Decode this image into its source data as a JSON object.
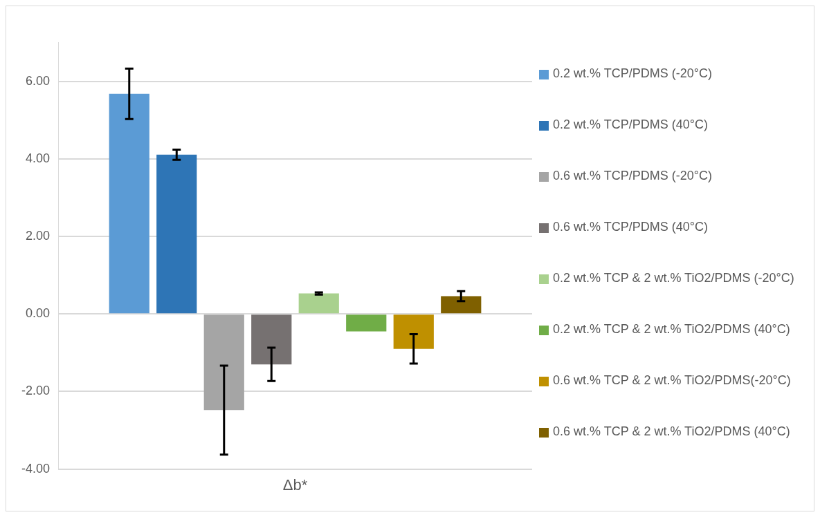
{
  "chart_data": {
    "type": "bar",
    "categories": [
      "Δb*"
    ],
    "series": [
      {
        "name": "0.2 wt.% TCP/PDMS (-20°C)",
        "color": "#5b9bd5",
        "values": [
          5.68
        ],
        "errors": [
          0.65
        ]
      },
      {
        "name": "0.2 wt.% TCP/PDMS (40°C)",
        "color": "#2e75b6",
        "values": [
          4.11
        ],
        "errors": [
          0.13
        ]
      },
      {
        "name": "0.6 wt.% TCP/PDMS (-20°C)",
        "color": "#a5a5a5",
        "values": [
          -2.48
        ],
        "errors": [
          1.15
        ]
      },
      {
        "name": "0.6 wt.% TCP/PDMS (40°C)",
        "color": "#767171",
        "values": [
          -1.3
        ],
        "errors": [
          0.43
        ]
      },
      {
        "name": "0.2 wt.% TCP & 2 wt.% TiO2/PDMS (-20°C)",
        "color": "#a9d18e",
        "values": [
          0.53
        ],
        "errors": [
          0.03
        ]
      },
      {
        "name": "0.2 wt.% TCP & 2 wt.% TiO2/PDMS (40°C)",
        "color": "#70ad47",
        "values": [
          -0.45
        ],
        "errors": [
          null
        ]
      },
      {
        "name": "0.6 wt.% TCP & 2 wt.% TiO2/PDMS(-20°C)",
        "color": "#bf9000",
        "values": [
          -0.9
        ],
        "errors": [
          0.38
        ]
      },
      {
        "name": "0.6 wt.% TCP & 2 wt.% TiO2/PDMS (40°C)",
        "color": "#7f6000",
        "values": [
          0.46
        ],
        "errors": [
          0.13
        ]
      }
    ],
    "ylim": [
      -4,
      7
    ],
    "yticks": [
      {
        "value": -4,
        "label": "-4.00"
      },
      {
        "value": -2,
        "label": "-2.00"
      },
      {
        "value": 0,
        "label": "0.00"
      },
      {
        "value": 2,
        "label": "2.00"
      },
      {
        "value": 4,
        "label": "4.00"
      },
      {
        "value": 6,
        "label": "6.00"
      }
    ],
    "grid": "y",
    "legend": "right"
  }
}
